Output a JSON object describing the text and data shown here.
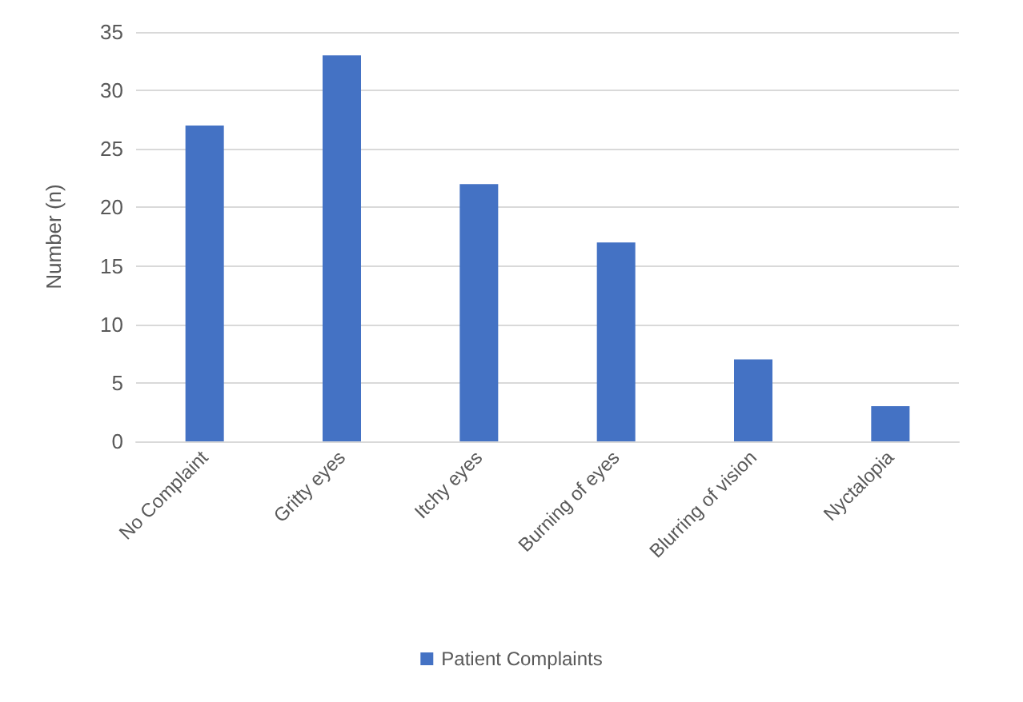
{
  "chart_data": {
    "type": "bar",
    "ylabel": "Number (n)",
    "categories": [
      "No Complaint",
      "Gritty eyes",
      "Itchy eyes",
      "Burning of eyes",
      "Blurring of vision",
      "Nyctalopia"
    ],
    "series": [
      {
        "name": "Patient Complaints",
        "color": "#4472c4",
        "values": [
          27,
          33,
          22,
          17,
          7,
          3
        ]
      }
    ],
    "ylim": [
      0,
      35
    ],
    "yticks": [
      0,
      5,
      10,
      15,
      20,
      25,
      30,
      35
    ],
    "grid": "y",
    "legend": "bottom"
  }
}
